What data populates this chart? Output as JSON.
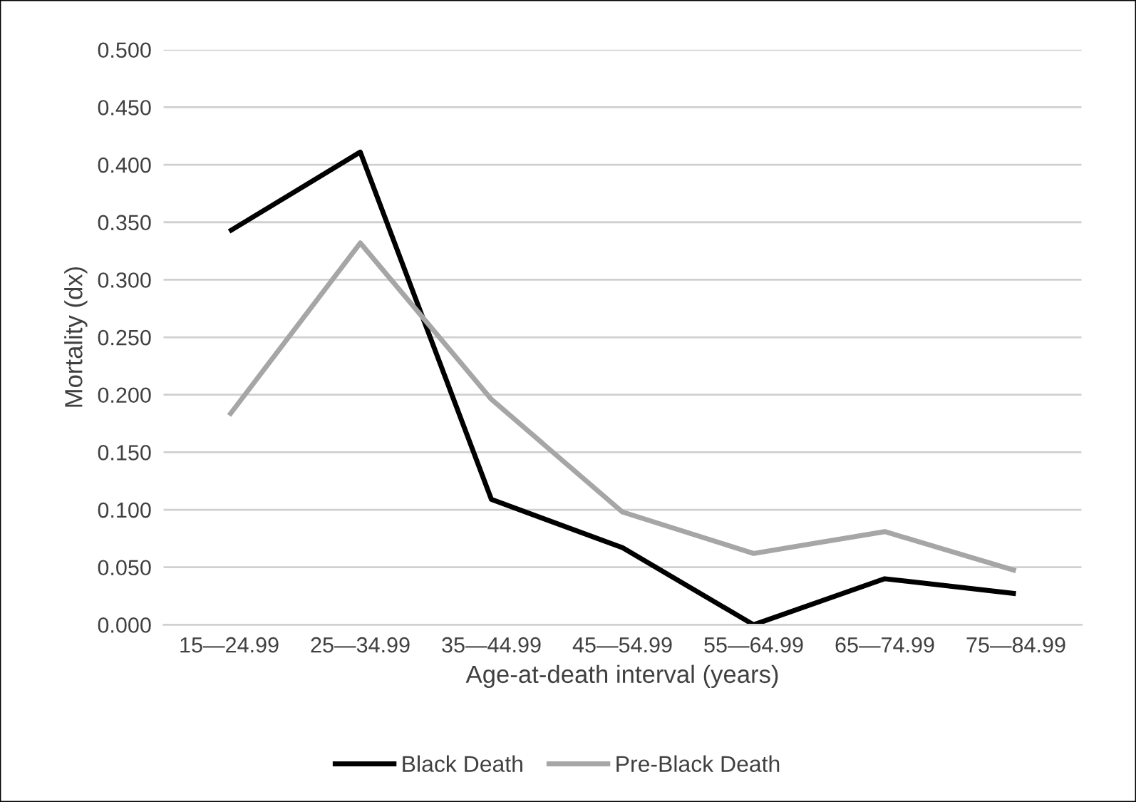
{
  "chart_data": {
    "type": "line",
    "xlabel": "Age-at-death interval (years)",
    "ylabel": "Mortality (dx)",
    "categories": [
      "15—24.99",
      "25—34.99",
      "35—44.99",
      "45—54.99",
      "55—64.99",
      "65—74.99",
      "75—84.99"
    ],
    "series": [
      {
        "name": "Black Death",
        "color": "#000000",
        "values": [
          0.342,
          0.411,
          0.109,
          0.067,
          0.0,
          0.04,
          0.027
        ]
      },
      {
        "name": "Pre-Black Death",
        "color": "#a6a6a6",
        "values": [
          0.182,
          0.332,
          0.196,
          0.098,
          0.062,
          0.081,
          0.047
        ]
      }
    ],
    "ylim": [
      0,
      0.5
    ],
    "yticks": [
      {
        "value": 0,
        "label": "0.000"
      },
      {
        "value": 0.05,
        "label": "0.050"
      },
      {
        "value": 0.1,
        "label": "0.100"
      },
      {
        "value": 0.15,
        "label": "0.150"
      },
      {
        "value": 0.2,
        "label": "0.200"
      },
      {
        "value": 0.25,
        "label": "0.250"
      },
      {
        "value": 0.3,
        "label": "0.300"
      },
      {
        "value": 0.35,
        "label": "0.350"
      },
      {
        "value": 0.4,
        "label": "0.400"
      },
      {
        "value": 0.45,
        "label": "0.450"
      },
      {
        "value": 0.5,
        "label": "0.500"
      }
    ],
    "grid": "y",
    "legend": "bottom",
    "marker": "none",
    "line_style": "solid"
  }
}
